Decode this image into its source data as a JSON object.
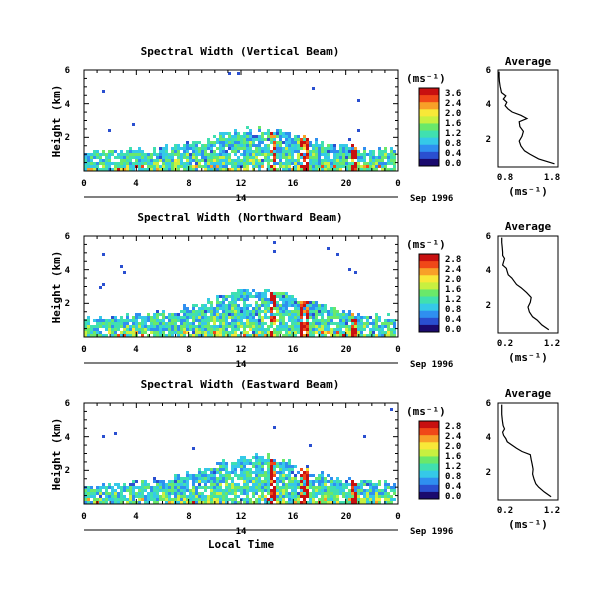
{
  "figure": {
    "xlabel": "Local Time",
    "date_label": "Sep 1996",
    "ylabel": "Height (km)",
    "unit_label": "(ms⁻¹)",
    "avg_title": "Average",
    "avg_xlabel": "(ms⁻¹)"
  },
  "colormap": [
    "#1a0a6e",
    "#2a4fd0",
    "#2f8ff0",
    "#35c9e8",
    "#40e0b0",
    "#6ae86a",
    "#c8f040",
    "#f8e838",
    "#f8a028",
    "#f04818",
    "#c81010"
  ],
  "chart_data": [
    {
      "type": "heatmap",
      "title": "Spectral Width (Vertical Beam)",
      "x_ticks": [
        "0",
        "4",
        "8",
        "12",
        "16",
        "20",
        "0"
      ],
      "sub_tick": "14",
      "xlim": [
        0,
        24
      ],
      "y_ticks": [
        "6",
        "4",
        "2"
      ],
      "ylim": [
        0,
        6
      ],
      "colorbar_ticks": [
        "3.6",
        "2.4",
        "2.0",
        "1.6",
        "1.2",
        "0.8",
        "0.4",
        "0.0"
      ],
      "avg": {
        "x_ticks": [
          "0.8",
          "1.8"
        ],
        "y_ticks": [
          "6",
          "4",
          "2"
        ],
        "xlim": [
          0.3,
          2.0
        ],
        "ylim": [
          0,
          6
        ],
        "height": [
          0.2,
          0.5,
          0.8,
          1.0,
          1.3,
          1.6,
          1.9,
          2.2,
          2.5,
          2.8,
          3.0,
          3.2,
          3.4,
          3.6,
          3.8,
          4.0,
          4.2,
          4.4,
          4.6,
          4.8,
          5.0,
          5.3,
          5.6,
          5.9
        ],
        "width": [
          1.9,
          1.45,
          1.2,
          1.05,
          0.95,
          0.9,
          0.98,
          1.02,
          0.92,
          0.9,
          1.12,
          0.95,
          0.7,
          0.58,
          0.5,
          0.55,
          0.45,
          0.52,
          0.4,
          0.38,
          0.36,
          0.34,
          0.33,
          0.33
        ]
      }
    },
    {
      "type": "heatmap",
      "title": "Spectral Width (Northward Beam)",
      "x_ticks": [
        "0",
        "4",
        "8",
        "12",
        "16",
        "20",
        "0"
      ],
      "sub_tick": "14",
      "xlim": [
        0,
        24
      ],
      "y_ticks": [
        "6",
        "4",
        "2"
      ],
      "ylim": [
        0,
        6
      ],
      "colorbar_ticks": [
        "2.8",
        "2.4",
        "2.0",
        "1.6",
        "1.2",
        "0.8",
        "0.4",
        "0.0"
      ],
      "avg": {
        "x_ticks": [
          "0.2",
          "1.2"
        ],
        "y_ticks": [
          "6",
          "4",
          "2"
        ],
        "xlim": [
          0.1,
          1.4
        ],
        "ylim": [
          0,
          6
        ],
        "height": [
          0.2,
          0.5,
          0.8,
          1.0,
          1.3,
          1.6,
          1.9,
          2.2,
          2.5,
          2.8,
          3.0,
          3.2,
          3.4,
          3.6,
          3.8,
          4.0,
          4.2,
          4.4,
          4.6,
          4.8,
          5.0,
          5.3,
          5.6,
          5.9
        ],
        "width": [
          1.2,
          1.05,
          0.95,
          0.85,
          0.78,
          0.75,
          0.8,
          0.82,
          0.72,
          0.6,
          0.5,
          0.45,
          0.4,
          0.32,
          0.3,
          0.28,
          0.2,
          0.22,
          0.24,
          0.2,
          0.2,
          0.19,
          0.18,
          0.18
        ]
      }
    },
    {
      "type": "heatmap",
      "title": "Spectral Width (Eastward Beam)",
      "x_ticks": [
        "0",
        "4",
        "8",
        "12",
        "16",
        "20",
        "0"
      ],
      "sub_tick": "14",
      "xlim": [
        0,
        24
      ],
      "y_ticks": [
        "6",
        "4",
        "2"
      ],
      "ylim": [
        0,
        6
      ],
      "colorbar_ticks": [
        "2.8",
        "2.4",
        "2.0",
        "1.6",
        "1.2",
        "0.8",
        "0.4",
        "0.0"
      ],
      "avg": {
        "x_ticks": [
          "0.2",
          "1.2"
        ],
        "y_ticks": [
          "6",
          "4",
          "2"
        ],
        "xlim": [
          0.1,
          1.4
        ],
        "ylim": [
          0,
          6
        ],
        "height": [
          0.2,
          0.5,
          0.8,
          1.0,
          1.3,
          1.6,
          1.9,
          2.2,
          2.5,
          2.8,
          3.0,
          3.2,
          3.4,
          3.6,
          3.8,
          4.0,
          4.2,
          4.4,
          4.6,
          4.8,
          5.0,
          5.3,
          5.6,
          5.9
        ],
        "width": [
          1.25,
          1.1,
          0.98,
          0.92,
          0.88,
          0.85,
          0.86,
          0.84,
          0.82,
          0.8,
          0.62,
          0.5,
          0.4,
          0.3,
          0.27,
          0.22,
          0.2,
          0.24,
          0.21,
          0.2,
          0.19,
          0.18,
          0.18,
          0.18
        ]
      }
    }
  ]
}
